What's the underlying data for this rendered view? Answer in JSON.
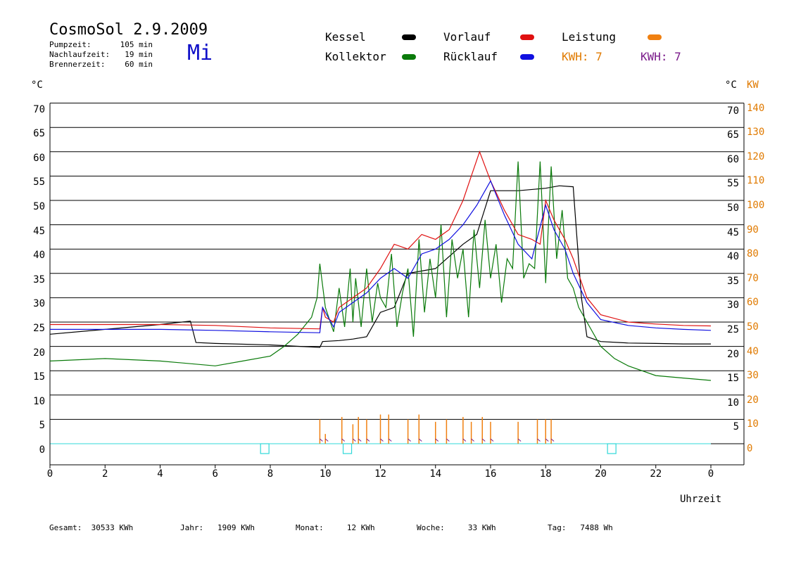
{
  "header": {
    "title": "CosmoSol 2.9.2009",
    "day": "Mi",
    "info": [
      {
        "label": "Pumpzeit:",
        "value": "105 min"
      },
      {
        "label": "Nachlaufzeit:",
        "value": "19 min"
      },
      {
        "label": "Brennerzeit:",
        "value": "60 min"
      }
    ]
  },
  "legend": {
    "kessel": "Kessel",
    "kollektor": "Kollektor",
    "vorlauf": "Vorlauf",
    "ruecklauf": "Rücklauf",
    "leistung": "Leistung",
    "kwh1": "KWH: 7",
    "kwh2": "KWH: 7"
  },
  "colors": {
    "kessel": "#000000",
    "kollektor": "#0a7a0a",
    "vorlauf": "#e01010",
    "ruecklauf": "#1010e0",
    "leistung": "#f08010",
    "kwh_purple": "#7a1a8a",
    "baseline": "#30d8d8"
  },
  "axis_labels": {
    "y_left_unit": "°C",
    "y_right_unit": "°C",
    "y_right2_unit": "KW",
    "x_label": "Uhrzeit"
  },
  "footer": [
    {
      "label": "Gesamt:",
      "value": "30533 KWh"
    },
    {
      "label": "Jahr:",
      "value": "1909 KWh"
    },
    {
      "label": "Monat:",
      "value": "12 KWh"
    },
    {
      "label": "Woche:",
      "value": "33 KWh"
    },
    {
      "label": "Tag:",
      "value": "7488 Wh"
    }
  ],
  "chart_data": {
    "type": "line",
    "xlabel": "Uhrzeit",
    "ylabel": "°C",
    "y2label": "KW",
    "xlim": [
      0,
      24
    ],
    "ylim": [
      -4,
      70
    ],
    "grid": true,
    "legend_position": "top",
    "x_ticks": [
      "0",
      "2",
      "4",
      "6",
      "8",
      "10",
      "12",
      "14",
      "16",
      "18",
      "20",
      "22",
      "0"
    ],
    "y_ticks_left": [
      "70",
      "65",
      "60",
      "55",
      "50",
      "45",
      "40",
      "35",
      "30",
      "25",
      "20",
      "15",
      "10",
      "5",
      "0"
    ],
    "y_ticks_right": [
      "70",
      "65",
      "60",
      "55",
      "50",
      "45",
      "40",
      "35",
      "30",
      "25",
      "20",
      "15",
      "10",
      "5"
    ],
    "y2_ticks": [
      "140",
      "130",
      "120",
      "110",
      "100",
      "90",
      "80",
      "70",
      "60",
      "50",
      "40",
      "30",
      "20",
      "10",
      "0"
    ],
    "series": [
      {
        "name": "Kessel",
        "x": [
          0,
          2,
          4,
          5.1,
          5.3,
          6,
          8,
          9.8,
          9.9,
          10.5,
          11,
          11.5,
          12,
          12.5,
          13,
          14,
          15,
          15.5,
          16,
          17,
          18,
          18.5,
          19,
          19.1,
          19.3,
          19.5,
          20,
          21,
          22,
          23,
          24
        ],
        "y": [
          22.5,
          23.5,
          24.5,
          25.2,
          20.8,
          20.6,
          20.3,
          19.8,
          21,
          21.2,
          21.5,
          22,
          27,
          28,
          35,
          36,
          41,
          43,
          52,
          52,
          52.5,
          53,
          52.8,
          45,
          30,
          22,
          21,
          20.7,
          20.6,
          20.5,
          20.5
        ]
      },
      {
        "name": "Kollektor",
        "x": [
          0,
          2,
          4,
          5,
          6,
          7,
          8,
          8.5,
          9,
          9.5,
          9.7,
          9.8,
          10,
          10.3,
          10.5,
          10.7,
          10.9,
          11,
          11.1,
          11.3,
          11.5,
          11.7,
          11.9,
          12,
          12.2,
          12.4,
          12.6,
          12.8,
          13,
          13.2,
          13.4,
          13.6,
          13.8,
          14,
          14.2,
          14.4,
          14.6,
          14.8,
          15,
          15.2,
          15.4,
          15.6,
          15.8,
          16,
          16.2,
          16.4,
          16.6,
          16.8,
          17,
          17.2,
          17.4,
          17.6,
          17.8,
          18,
          18.2,
          18.4,
          18.6,
          18.8,
          19,
          19.2,
          19.5,
          20,
          20.5,
          21,
          22,
          23,
          24
        ],
        "y": [
          17,
          17.5,
          17,
          16.5,
          16,
          17,
          18,
          20,
          22.5,
          26,
          30,
          37,
          28,
          23,
          32,
          24,
          36,
          25,
          34,
          24,
          36,
          25,
          33,
          30,
          28,
          39,
          24,
          31,
          36,
          22,
          42,
          27,
          38,
          30,
          45,
          26,
          42,
          34,
          40,
          26,
          44,
          32,
          46,
          34,
          41,
          29,
          38,
          36,
          58,
          34,
          37,
          36,
          58,
          33,
          57,
          38,
          48,
          34,
          32,
          28,
          25,
          20,
          17.5,
          16,
          14,
          13.5,
          13
        ]
      },
      {
        "name": "Vorlauf",
        "x": [
          0,
          2,
          4,
          6,
          8,
          9.8,
          9.9,
          10,
          10.3,
          10.5,
          11,
          11.5,
          12,
          12.5,
          13,
          13.5,
          14,
          14.5,
          15,
          15.3,
          15.6,
          15.8,
          16,
          16.5,
          17,
          17.5,
          17.8,
          18,
          18.3,
          18.7,
          19,
          19.5,
          20,
          21,
          22,
          23,
          24
        ],
        "y": [
          24.5,
          24.5,
          24.5,
          24.3,
          23.8,
          23.6,
          28,
          26,
          25,
          28,
          30,
          32,
          36,
          41,
          40,
          43,
          42,
          44,
          50,
          55,
          60,
          57,
          54,
          48,
          43,
          42,
          41,
          50,
          46,
          42,
          38,
          30,
          26.5,
          25,
          24.6,
          24.3,
          24.2
        ]
      },
      {
        "name": "Rücklauf",
        "x": [
          0,
          2,
          4,
          6,
          8,
          9.8,
          9.9,
          10.3,
          10.5,
          11,
          11.5,
          12,
          12.5,
          13,
          13.5,
          14,
          14.5,
          15,
          15.5,
          16,
          16.5,
          17,
          17.5,
          18,
          18.3,
          18.7,
          19,
          19.5,
          20,
          21,
          22,
          23,
          24
        ],
        "y": [
          23.5,
          23.5,
          23.5,
          23.3,
          23,
          22.8,
          28,
          24,
          27,
          29,
          31,
          34,
          36,
          34,
          39,
          40,
          42,
          45,
          49,
          54,
          47,
          41,
          38,
          49,
          44,
          40,
          35,
          29,
          25.5,
          24.3,
          23.8,
          23.5,
          23.3
        ]
      },
      {
        "name": "Leistung",
        "x": [
          9.8,
          10,
          10.6,
          11,
          11.2,
          11.5,
          12,
          12.3,
          13,
          13.4,
          14,
          14.4,
          15,
          15.3,
          15.7,
          16,
          17,
          17.7,
          18,
          18.2
        ],
        "y": [
          10,
          4,
          11,
          8,
          11,
          10,
          12,
          12,
          10,
          12,
          9,
          10,
          11,
          9,
          11,
          9,
          9,
          10,
          10,
          10
        ]
      }
    ]
  }
}
